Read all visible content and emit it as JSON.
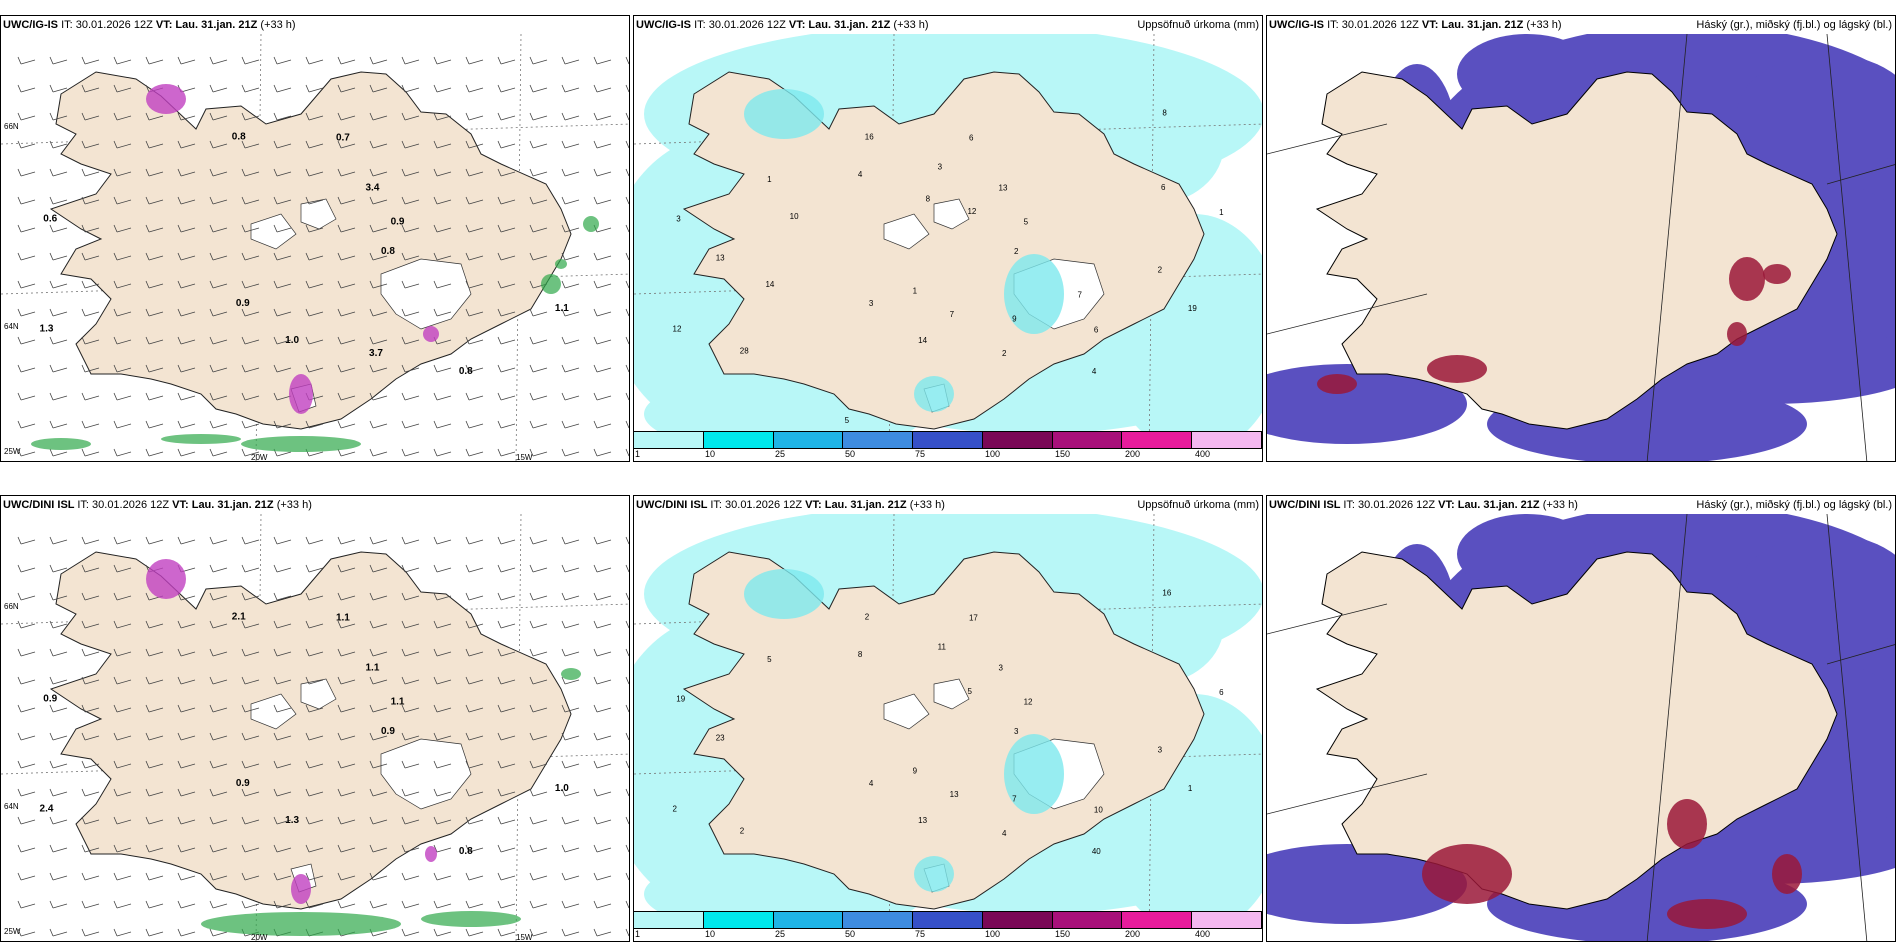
{
  "panels": [
    {
      "model": "UWC/IG-IS",
      "it": "IT: 30.01.2026 12Z",
      "vt_label": "VT:",
      "vt": "Lau. 31.jan. 21Z",
      "lead": "(+33 h)",
      "right": "",
      "kind": "wind",
      "axis_labels": {
        "lat_top": "66N",
        "lat_mid": "64N",
        "lat_bot": "25W",
        "lon_a": "20W",
        "lon_b": "15W"
      },
      "values": [
        "0.8",
        "0.9",
        "0.7",
        "0.8",
        "0.6",
        "0.9",
        "1.0",
        "0.8",
        "1.1",
        "1.3",
        "3.4",
        "3.7"
      ]
    },
    {
      "model": "UWC/IG-IS",
      "it": "IT: 30.01.2026 12Z",
      "vt_label": "VT:",
      "vt": "Lau. 31.jan. 21Z",
      "lead": "(+33 h)",
      "right": "Uppsöfnuð úrkoma (mm)",
      "kind": "precip",
      "values": [
        "2",
        "3",
        "6",
        "4",
        "3",
        "5",
        "14",
        "16",
        "19",
        "12",
        "13",
        "2",
        "1",
        "1",
        "1",
        "3",
        "6",
        "13",
        "8",
        "7",
        "4",
        "2",
        "28",
        "12",
        "9",
        "10",
        "6",
        "5",
        "8",
        "7",
        "14"
      ]
    },
    {
      "model": "UWC/IG-IS",
      "it": "IT: 30.01.2026 12Z",
      "vt_label": "VT:",
      "vt": "Lau. 31.jan. 21Z",
      "lead": "(+33 h)",
      "right": "Háský (gr.), miðský (fj.bl.) og lágský (bl.)",
      "kind": "cloud"
    },
    {
      "model": "UWC/DINI ISL",
      "it": "IT: 30.01.2026 12Z",
      "vt_label": "VT:",
      "vt": "Lau. 31.jan. 21Z",
      "lead": "(+33 h)",
      "right": "",
      "kind": "wind",
      "axis_labels": {
        "lat_top": "66N",
        "lat_mid": "64N",
        "lat_bot": "25W",
        "lon_a": "20W",
        "lon_b": "15W"
      },
      "values": [
        "0.9",
        "0.9",
        "1.1",
        "0.8",
        "0.9",
        "1.1",
        "1.3",
        "2.1",
        "1.0",
        "2.4",
        "1.1"
      ]
    },
    {
      "model": "UWC/DINI ISL",
      "it": "IT: 30.01.2026 12Z",
      "vt_label": "VT:",
      "vt": "Lau. 31.jan. 21Z",
      "lead": "(+33 h)",
      "right": "Uppsöfnuð úrkoma (mm)",
      "kind": "precip",
      "values": [
        "3",
        "4",
        "17",
        "40",
        "19",
        "12",
        "13",
        "2",
        "1",
        "2",
        "3",
        "4",
        "5",
        "6",
        "9",
        "11",
        "10",
        "23",
        "16",
        "13",
        "8",
        "3",
        "2",
        "5",
        "7"
      ]
    },
    {
      "model": "UWC/DINI ISL",
      "it": "IT: 30.01.2026 12Z",
      "vt_label": "VT:",
      "vt": "Lau. 31.jan. 21Z",
      "lead": "(+33 h)",
      "right": "Háský (gr.), miðský (fj.bl.) og lágský (bl.)",
      "kind": "cloud"
    }
  ],
  "precip_legend": {
    "colors": [
      "#b8f7f7",
      "#00e8ec",
      "#1fb4e6",
      "#3e8ce0",
      "#3650c8",
      "#7a0856",
      "#a8107a",
      "#e81c9c",
      "#f4b8f0"
    ],
    "ticks": [
      "1",
      "10",
      "25",
      "50",
      "75",
      "100",
      "150",
      "200",
      "400"
    ]
  },
  "colors": {
    "land": "#f3e4d2",
    "wind_green": "#2fa84a",
    "purple": "#c040c0",
    "cloud_blue": "#5a50c0",
    "cloud_red": "#9a1838",
    "sea_cyan": "#b8f7f7"
  }
}
